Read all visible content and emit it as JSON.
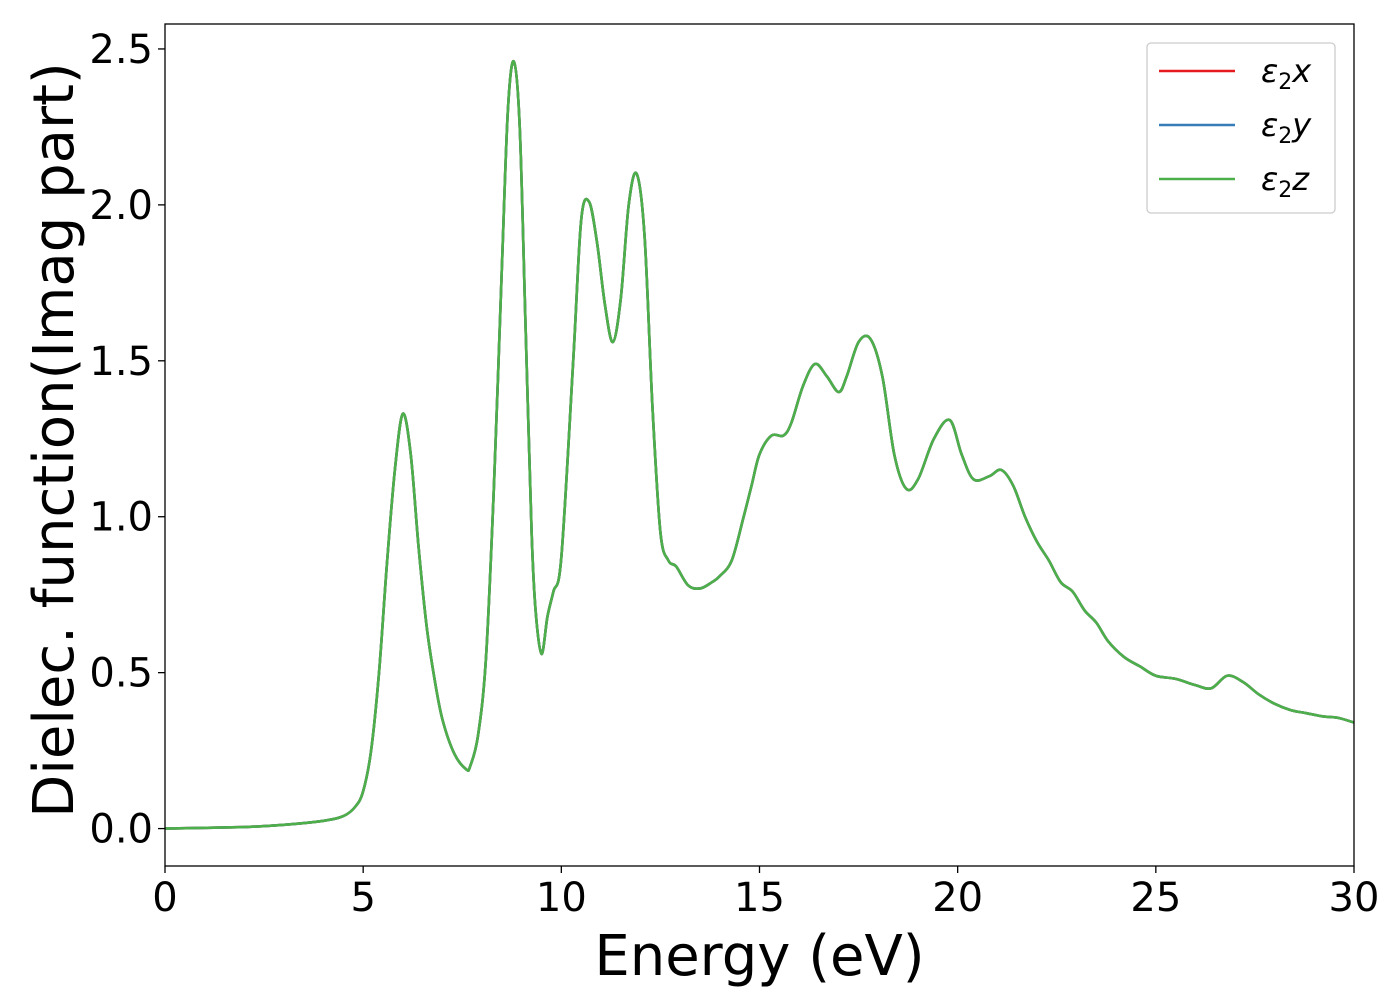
{
  "chart_data": {
    "type": "line",
    "title": "",
    "xlabel": "Energy (eV)",
    "ylabel": "Dielec. function(Imag part)",
    "xlim": [
      0,
      30
    ],
    "ylim": [
      -0.12,
      2.58
    ],
    "xticks": [
      0,
      5,
      10,
      15,
      20,
      25,
      30
    ],
    "xtick_labels": [
      "0",
      "5",
      "10",
      "15",
      "20",
      "25",
      "30"
    ],
    "yticks": [
      0.0,
      0.5,
      1.0,
      1.5,
      2.0,
      2.5
    ],
    "ytick_labels": [
      "0.0",
      "0.5",
      "1.0",
      "1.5",
      "2.0",
      "2.5"
    ],
    "grid": false,
    "legend_position": "top-right",
    "series": [
      {
        "name": "ε2x",
        "legend_main": "ε",
        "legend_sub": "2",
        "legend_tail": "x",
        "color": "#e41a1c"
      },
      {
        "name": "ε2y",
        "legend_main": "ε",
        "legend_sub": "2",
        "legend_tail": "y",
        "color": "#377eb8"
      },
      {
        "name": "ε2z",
        "legend_main": "ε",
        "legend_sub": "2",
        "legend_tail": "z",
        "color": "#4daf4a"
      }
    ],
    "x": [
      0,
      2,
      3,
      4,
      4.5,
      4.8,
      5.0,
      5.2,
      5.4,
      5.6,
      5.8,
      6.0,
      6.2,
      6.4,
      6.6,
      6.8,
      7.0,
      7.3,
      7.6,
      7.7,
      7.9,
      8.1,
      8.3,
      8.5,
      8.65,
      8.8,
      8.95,
      9.1,
      9.25,
      9.35,
      9.5,
      9.65,
      9.8,
      10.0,
      10.3,
      10.5,
      10.7,
      10.9,
      11.1,
      11.3,
      11.5,
      11.7,
      11.9,
      12.1,
      12.3,
      12.5,
      12.7,
      12.9,
      13.2,
      13.5,
      13.8,
      14.0,
      14.3,
      14.6,
      14.8,
      15.0,
      15.3,
      15.6,
      15.8,
      16.1,
      16.4,
      16.7,
      17.0,
      17.2,
      17.5,
      17.8,
      18.1,
      18.4,
      18.7,
      19.0,
      19.4,
      19.8,
      20.1,
      20.4,
      20.8,
      21.1,
      21.4,
      21.7,
      22.0,
      22.3,
      22.6,
      22.9,
      23.2,
      23.5,
      23.8,
      24.2,
      24.6,
      25.0,
      25.5,
      26.0,
      26.4,
      26.8,
      27.2,
      27.6,
      28.0,
      28.4,
      28.8,
      29.2,
      29.6,
      30.0
    ],
    "y": [
      0.0,
      0.005,
      0.012,
      0.025,
      0.04,
      0.07,
      0.12,
      0.25,
      0.5,
      0.85,
      1.15,
      1.33,
      1.2,
      0.9,
      0.65,
      0.48,
      0.35,
      0.24,
      0.19,
      0.2,
      0.3,
      0.55,
      1.1,
      1.8,
      2.3,
      2.46,
      2.25,
      1.6,
      0.95,
      0.7,
      0.56,
      0.68,
      0.76,
      0.87,
      1.5,
      1.95,
      2.01,
      1.88,
      1.68,
      1.56,
      1.7,
      2.0,
      2.1,
      1.9,
      1.35,
      0.95,
      0.86,
      0.84,
      0.78,
      0.77,
      0.79,
      0.81,
      0.86,
      1.0,
      1.1,
      1.2,
      1.26,
      1.26,
      1.3,
      1.42,
      1.49,
      1.45,
      1.4,
      1.45,
      1.56,
      1.57,
      1.45,
      1.2,
      1.09,
      1.12,
      1.25,
      1.31,
      1.2,
      1.12,
      1.13,
      1.15,
      1.1,
      1.0,
      0.92,
      0.86,
      0.79,
      0.76,
      0.7,
      0.66,
      0.6,
      0.55,
      0.52,
      0.49,
      0.48,
      0.46,
      0.45,
      0.49,
      0.47,
      0.43,
      0.4,
      0.38,
      0.37,
      0.36,
      0.355,
      0.34
    ]
  }
}
